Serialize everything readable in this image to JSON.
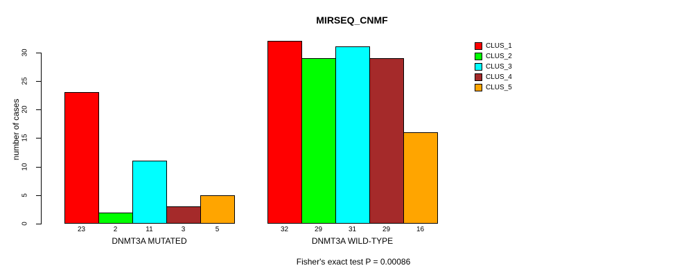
{
  "chart_data": {
    "type": "bar",
    "title": "MIRSEQ_CNMF",
    "ylabel": "number of cases",
    "xlabel": "",
    "categories": [
      "DNMT3A MUTATED",
      "DNMT3A WILD-TYPE"
    ],
    "series": [
      {
        "name": "CLUS_1",
        "color": "#FF0000",
        "values": [
          23,
          32
        ]
      },
      {
        "name": "CLUS_2",
        "color": "#00FF00",
        "values": [
          2,
          29
        ]
      },
      {
        "name": "CLUS_3",
        "color": "#00FFFF",
        "values": [
          11,
          31
        ]
      },
      {
        "name": "CLUS_4",
        "color": "#A52A2A",
        "values": [
          3,
          29
        ]
      },
      {
        "name": "CLUS_5",
        "color": "#FFA500",
        "values": [
          5,
          16
        ]
      }
    ],
    "yticks": [
      0,
      5,
      10,
      15,
      20,
      25,
      30
    ],
    "ylim": [
      0,
      32
    ],
    "grid": false,
    "legend_position": "right",
    "annotation": "Fisher's exact test P = 0.00086"
  }
}
